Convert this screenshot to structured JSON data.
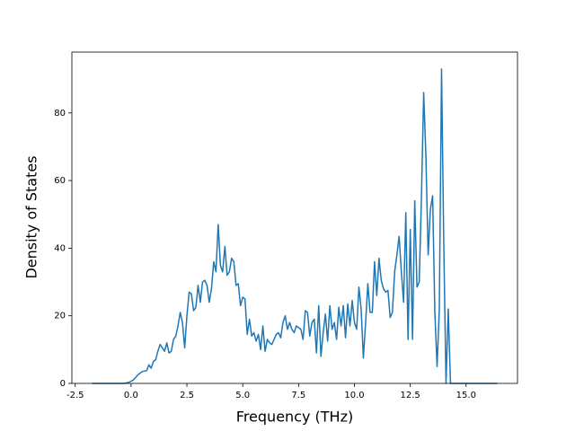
{
  "chart_data": {
    "type": "line",
    "xlabel": "Frequency (THz)",
    "ylabel": "Density of States",
    "xlim": [
      -2.65,
      17.3
    ],
    "ylim": [
      0,
      98
    ],
    "xticks": [
      -2.5,
      {
        "value": 0,
        "label": "0.0"
      },
      2.5,
      {
        "value": 5,
        "label": "5.0"
      },
      7.5,
      {
        "value": 10,
        "label": "10.0"
      },
      12.5,
      {
        "value": 15,
        "label": "15.0"
      }
    ],
    "yticks": [
      0,
      20,
      40,
      60,
      80
    ],
    "grid": false,
    "series": [
      {
        "color": "#1f77b4",
        "x": [
          -1.75,
          -0.3,
          -0.1,
          0.1,
          0.3,
          0.5,
          0.7,
          0.8,
          0.9,
          1.0,
          1.1,
          1.2,
          1.3,
          1.4,
          1.5,
          1.6,
          1.7,
          1.8,
          1.9,
          2.0,
          2.1,
          2.2,
          2.3,
          2.4,
          2.5,
          2.6,
          2.7,
          2.8,
          2.9,
          3.0,
          3.1,
          3.2,
          3.3,
          3.4,
          3.5,
          3.6,
          3.7,
          3.8,
          3.9,
          4.0,
          4.1,
          4.2,
          4.3,
          4.4,
          4.5,
          4.6,
          4.7,
          4.8,
          4.9,
          5.0,
          5.1,
          5.2,
          5.3,
          5.4,
          5.5,
          5.6,
          5.7,
          5.8,
          5.9,
          6.0,
          6.1,
          6.2,
          6.3,
          6.4,
          6.5,
          6.6,
          6.7,
          6.8,
          6.9,
          7.0,
          7.1,
          7.2,
          7.3,
          7.4,
          7.5,
          7.6,
          7.7,
          7.8,
          7.9,
          8.0,
          8.1,
          8.2,
          8.3,
          8.4,
          8.5,
          8.6,
          8.7,
          8.8,
          8.9,
          9.0,
          9.1,
          9.2,
          9.3,
          9.4,
          9.5,
          9.6,
          9.7,
          9.8,
          9.9,
          10.0,
          10.1,
          10.2,
          10.3,
          10.4,
          10.5,
          10.6,
          10.7,
          10.8,
          10.9,
          11.0,
          11.1,
          11.2,
          11.3,
          11.4,
          11.5,
          11.6,
          11.7,
          11.8,
          11.9,
          12.0,
          12.1,
          12.2,
          12.3,
          12.4,
          12.5,
          12.6,
          12.7,
          12.8,
          12.9,
          13.0,
          13.1,
          13.2,
          13.3,
          13.4,
          13.5,
          13.6,
          13.7,
          13.8,
          13.9,
          14.0,
          14.1,
          14.2,
          14.3,
          16.4
        ],
        "values": [
          0,
          0,
          0.3,
          1,
          2.5,
          3.5,
          3.8,
          5.5,
          4.5,
          6.5,
          7,
          9.5,
          11.5,
          10.5,
          9.5,
          12,
          9,
          9.5,
          13,
          14,
          17,
          21,
          18,
          10.5,
          20,
          27,
          26.5,
          21.5,
          22.5,
          29,
          24,
          30,
          30.5,
          29,
          24,
          28,
          36,
          33,
          47,
          35,
          33,
          40.5,
          32,
          33,
          37,
          36,
          29,
          29.5,
          23,
          25.5,
          25,
          14.5,
          19,
          14,
          15,
          12.5,
          14.5,
          10,
          17,
          9.5,
          13,
          12,
          11.5,
          13,
          14.5,
          15,
          13.5,
          18,
          20,
          16,
          18,
          16,
          15,
          17,
          16.5,
          16,
          13,
          21.5,
          21,
          14,
          18,
          19,
          9,
          23,
          8,
          15,
          20.5,
          12.5,
          23,
          16,
          18,
          13,
          22.5,
          17,
          23,
          13.5,
          23.5,
          17,
          24.5,
          18,
          16,
          28.5,
          22,
          7.5,
          18,
          29.5,
          21,
          21,
          36,
          26,
          37,
          30.5,
          28,
          27,
          27.5,
          19.5,
          21,
          33,
          38,
          43.5,
          33,
          24,
          50.5,
          13,
          45.5,
          13,
          54,
          28.5,
          30,
          55,
          86,
          67,
          38,
          51.5,
          55.5,
          21,
          5,
          22,
          93,
          41,
          0,
          22,
          0,
          0
        ]
      }
    ]
  }
}
